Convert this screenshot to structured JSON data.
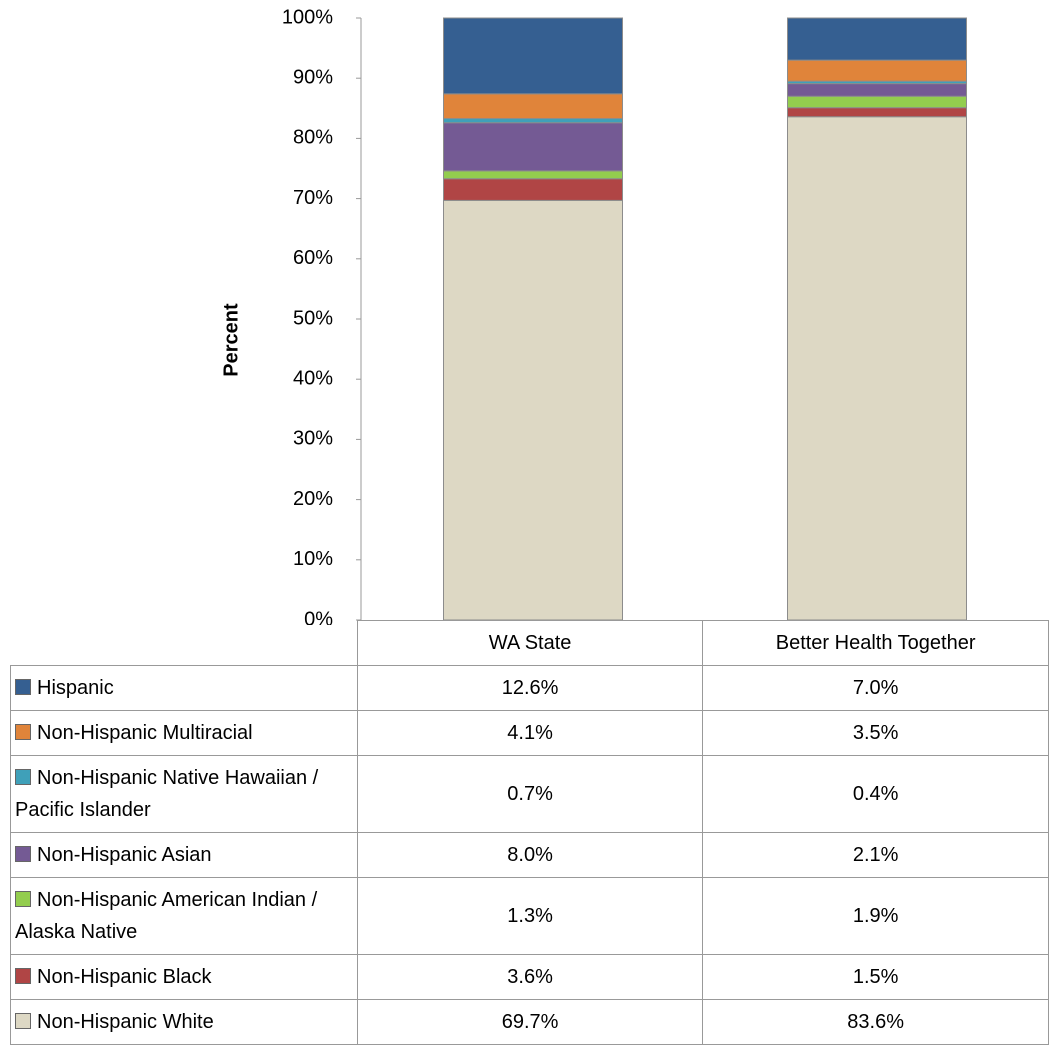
{
  "chart_data": {
    "type": "stacked_bar",
    "ylabel": "Percent",
    "categories": [
      "WA State",
      "Better Health Together"
    ],
    "ylim": [
      0,
      100
    ],
    "yticks": [
      {
        "value": 0,
        "label": "0%"
      },
      {
        "value": 10,
        "label": "10%"
      },
      {
        "value": 20,
        "label": "20%"
      },
      {
        "value": 30,
        "label": "30%"
      },
      {
        "value": 40,
        "label": "40%"
      },
      {
        "value": 50,
        "label": "50%"
      },
      {
        "value": 60,
        "label": "60%"
      },
      {
        "value": 70,
        "label": "70%"
      },
      {
        "value": 80,
        "label": "80%"
      },
      {
        "value": 90,
        "label": "90%"
      },
      {
        "value": 100,
        "label": "100%"
      }
    ],
    "series": [
      {
        "name": "Hispanic",
        "color": "#355f91",
        "values": [
          12.6,
          7.0
        ],
        "value_labels": [
          "12.6%",
          "7.0%"
        ]
      },
      {
        "name": "Non-Hispanic Multiracial",
        "color": "#e0843a",
        "values": [
          4.1,
          3.5
        ],
        "value_labels": [
          "4.1%",
          "3.5%"
        ]
      },
      {
        "name": "Non-Hispanic Native Hawaiian / Pacific Islander",
        "color": "#3fa0b9",
        "values": [
          0.7,
          0.4
        ],
        "value_labels": [
          "0.7%",
          "0.4%"
        ]
      },
      {
        "name": "Non-Hispanic Asian",
        "color": "#745a94",
        "values": [
          8.0,
          2.1
        ],
        "value_labels": [
          "8.0%",
          "2.1%"
        ]
      },
      {
        "name": "Non-Hispanic American Indian / Alaska Native",
        "color": "#93cd4e",
        "values": [
          1.3,
          1.9
        ],
        "value_labels": [
          "1.3%",
          "1.9%"
        ]
      },
      {
        "name": "Non-Hispanic Black",
        "color": "#b04545",
        "values": [
          3.6,
          1.5
        ],
        "value_labels": [
          "3.6%",
          "1.5%"
        ]
      },
      {
        "name": "Non-Hispanic White",
        "color": "#ddd8c4",
        "values": [
          69.7,
          83.6
        ],
        "value_labels": [
          "69.7%",
          "83.6%"
        ]
      }
    ]
  }
}
